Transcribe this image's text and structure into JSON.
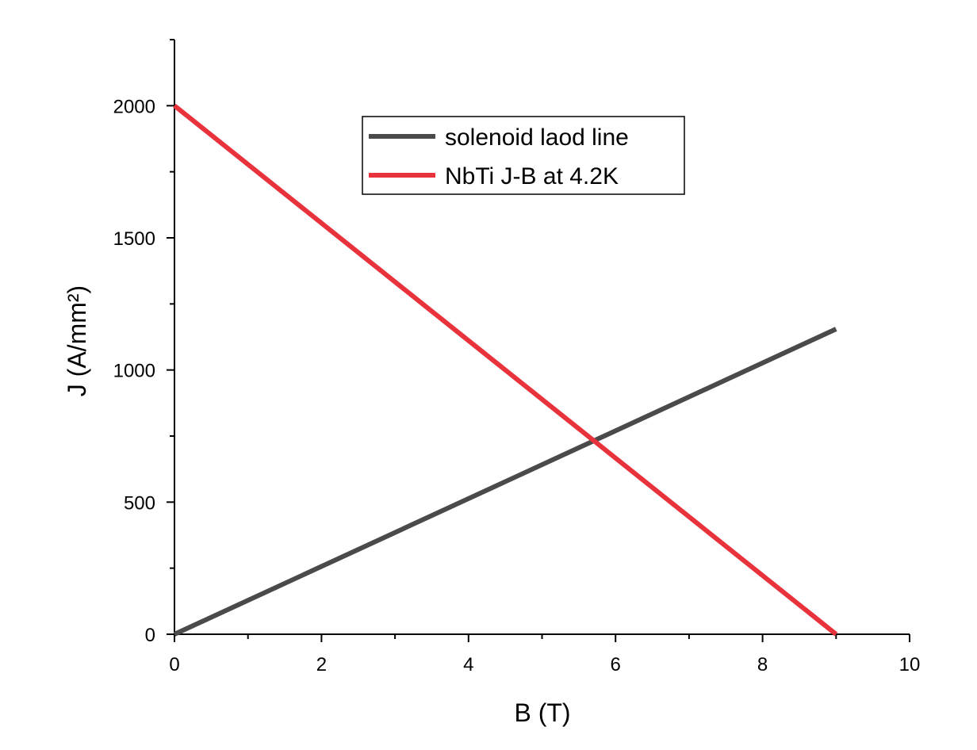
{
  "chart_data": {
    "type": "line",
    "title": "",
    "xlabel": "B (T)",
    "ylabel": "J (A/mm²)",
    "xlim": [
      0,
      10
    ],
    "ylim": [
      0,
      2250
    ],
    "x_ticks": [
      0,
      2,
      4,
      6,
      8,
      10
    ],
    "x_tick_labels": [
      "0",
      "2",
      "4",
      "6",
      "8",
      "10"
    ],
    "y_ticks": [
      0,
      500,
      1000,
      1500,
      2000
    ],
    "y_tick_labels": [
      "0",
      "500",
      "1000",
      "1500",
      "2000"
    ],
    "grid": false,
    "legend_position": "top-center",
    "series": [
      {
        "name": "solenoid laod line",
        "color": "#4a4a4a",
        "x": [
          0,
          9
        ],
        "y": [
          0,
          1155
        ]
      },
      {
        "name": "NbTi J-B at 4.2K",
        "color": "#e8323c",
        "x": [
          0,
          9
        ],
        "y": [
          2000,
          0
        ]
      }
    ]
  }
}
